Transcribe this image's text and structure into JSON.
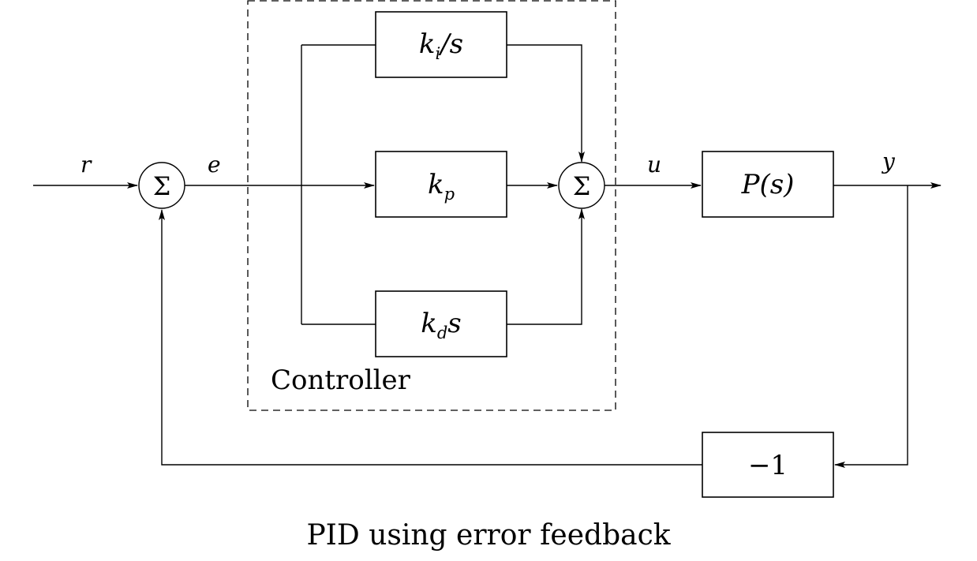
{
  "diagram": {
    "caption": "PID using error feedback",
    "group_label": "Controller",
    "signals": {
      "reference": "r",
      "error": "e",
      "control": "u",
      "output": "y"
    },
    "summing_symbol": "Σ",
    "blocks": {
      "integral": {
        "gain": "k",
        "sub": "i",
        "suffix": "/s"
      },
      "proportional": {
        "gain": "k",
        "sub": "p"
      },
      "derivative": {
        "gain": "k",
        "sub": "d",
        "suffix": "s"
      },
      "plant": "P(s)",
      "feedback_gain": "−1"
    }
  }
}
